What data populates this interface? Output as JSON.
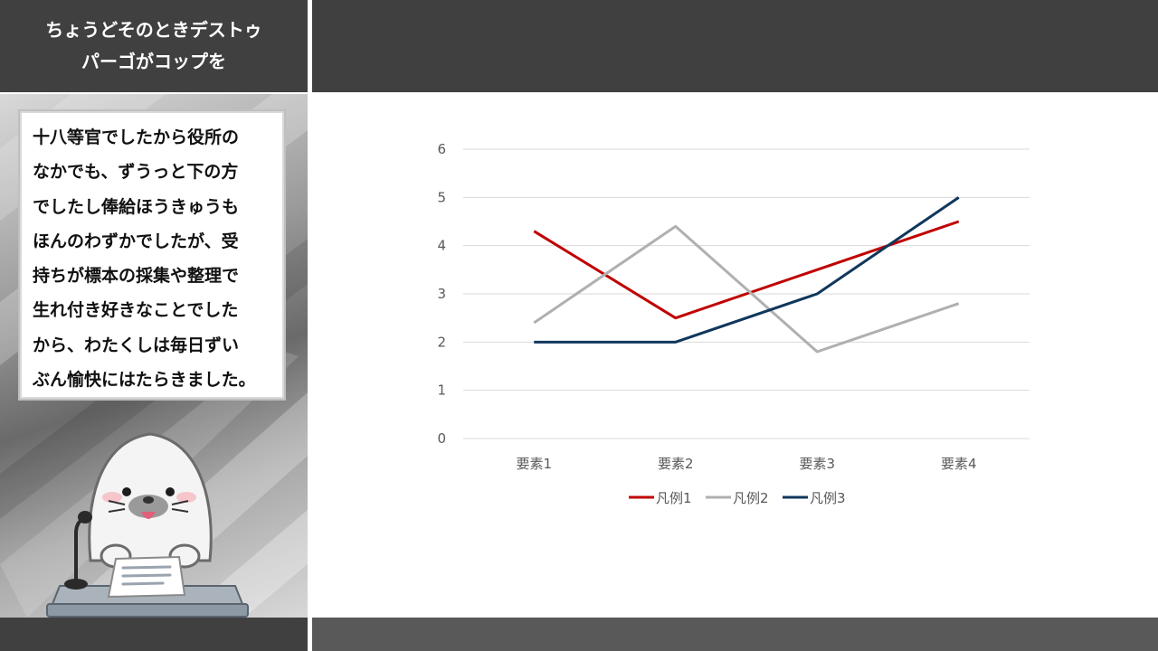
{
  "title": {
    "line1": "ちょうどそのときデストゥ",
    "line2": "パーゴがコップを"
  },
  "quote": {
    "lines": [
      "十八等官でしたから役所の",
      "なかでも、ずうっと下の方",
      "でしたし俸給ほうきゅうも",
      "ほんのわずかでしたが、受",
      "持ちが標本の採集や整理で",
      "生れ付き好きなことでした",
      "から、わたくしは毎日ずい",
      "ぶん愉快にはたらきました。"
    ]
  },
  "illustration": {
    "icon": "seal-at-microphone-icon"
  },
  "colors": {
    "dark_band": "#404040",
    "footer_right": "#595959",
    "series1": "#C00000",
    "series2": "#B0B0B0",
    "series3": "#10375C",
    "grid": "#D9D9D9",
    "tick_text": "#595959"
  },
  "chart_data": {
    "type": "line",
    "categories": [
      "要素1",
      "要素2",
      "要素3",
      "要素4"
    ],
    "series": [
      {
        "name": "凡例1",
        "values": [
          4.3,
          2.5,
          3.5,
          4.5
        ],
        "color": "#C00000"
      },
      {
        "name": "凡例2",
        "values": [
          2.4,
          4.4,
          1.8,
          2.8
        ],
        "color": "#B0B0B0"
      },
      {
        "name": "凡例3",
        "values": [
          2.0,
          2.0,
          3.0,
          5.0
        ],
        "color": "#10375C"
      }
    ],
    "ylim": [
      0,
      6
    ],
    "yticks": [
      "0",
      "1",
      "2",
      "3",
      "4",
      "5",
      "6"
    ],
    "grid": true,
    "legend_position": "bottom"
  }
}
